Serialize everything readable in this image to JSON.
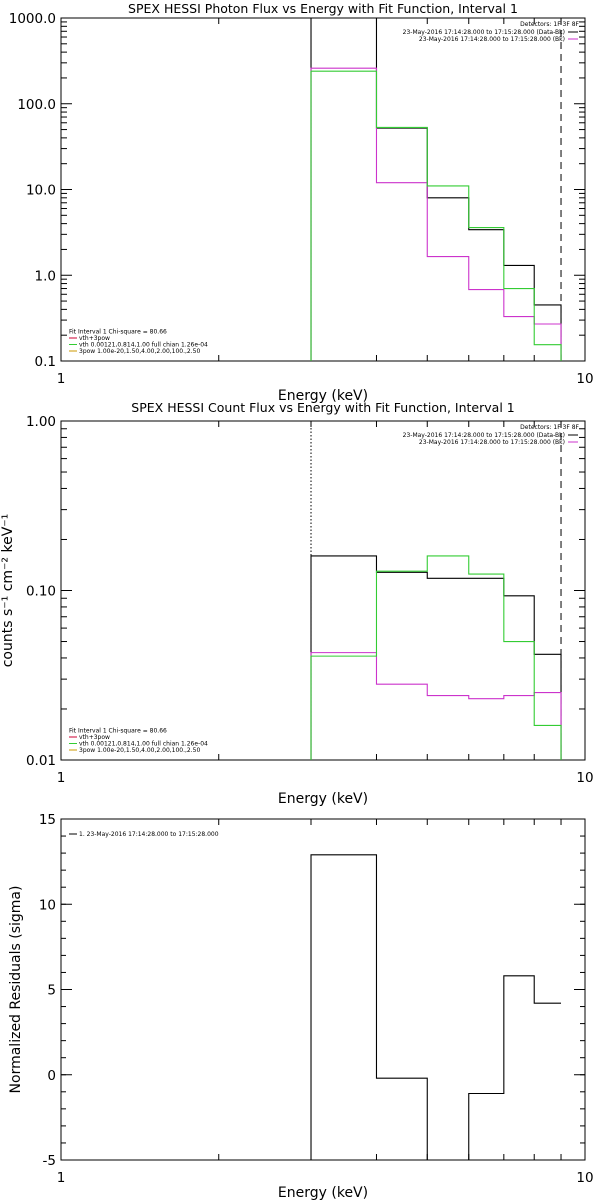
{
  "chart_data": [
    {
      "type": "line",
      "title": "SPEX HESSI Photon Flux vs Energy with Fit Function, Interval 1",
      "xlabel": "Energy (keV)",
      "ylabel": "",
      "xscale": "log",
      "yscale": "log",
      "xlim": [
        1,
        10
      ],
      "ylim": [
        0.1,
        1000
      ],
      "x_ticks": [
        "1",
        "10"
      ],
      "y_ticks": [
        "0.1",
        "1.0",
        "10.0",
        "100.0",
        "1000.0"
      ],
      "grid": false,
      "detectors_label": "Detectors: 1F 3F 8F",
      "legend_right": [
        {
          "text": "23-May-2016 17:14:28.000 to 17:15:28.000 (Data-Bk)",
          "color": "#000000"
        },
        {
          "text": "23-May-2016 17:14:28.000 to 17:15:28.000 (Bk)",
          "color": "#cc33cc"
        }
      ],
      "legend_left": [
        {
          "text": "Fit Interval 1    Chi-square = 80.66",
          "color": ""
        },
        {
          "text": "vth+3pow",
          "color": "#cc0033"
        },
        {
          "text": "vth 0.00121,0.814,1.00  full chian 1.26e-04",
          "color": "#33cc33"
        },
        {
          "text": "3pow 1.00e-20,1.50,4.00,2.00,100.,2.50",
          "color": "#cc9900"
        }
      ],
      "vlines": [
        {
          "x": 3.0,
          "style": "dotted",
          "color": "#33cc33"
        },
        {
          "x": 9.0,
          "style": "dashed",
          "color": "#000000"
        }
      ],
      "bin_edges": [
        3.0,
        4.0,
        5.0,
        6.0,
        7.0,
        8.0,
        9.0
      ],
      "series": [
        {
          "name": "Data-Bk",
          "color": "#000000",
          "values": [
            1000,
            52,
            8.0,
            3.4,
            1.3,
            0.45
          ]
        },
        {
          "name": "Bk",
          "color": "#cc33cc",
          "values": [
            260,
            12,
            1.65,
            0.68,
            0.33,
            0.27
          ]
        },
        {
          "name": "vth+3pow",
          "color": "#33cc33",
          "values": [
            240,
            53,
            11,
            3.6,
            0.7,
            0.155
          ]
        }
      ]
    },
    {
      "type": "line",
      "title": "SPEX HESSI Count Flux vs Energy with Fit Function, Interval 1",
      "xlabel": "Energy (keV)",
      "ylabel": "counts s⁻¹ cm⁻² keV⁻¹",
      "xscale": "log",
      "yscale": "log",
      "xlim": [
        1,
        10
      ],
      "ylim": [
        0.01,
        1.0
      ],
      "x_ticks": [
        "1",
        "10"
      ],
      "y_ticks": [
        "0.01",
        "0.10",
        "1.00"
      ],
      "grid": false,
      "detectors_label": "Detectors: 1F 3F 8F",
      "legend_right": [
        {
          "text": "23-May-2016 17:14:28.000 to 17:15:28.000 (Data-Bk)",
          "color": "#000000"
        },
        {
          "text": "23-May-2016 17:14:28.000 to 17:15:28.000 (Bk)",
          "color": "#cc33cc"
        }
      ],
      "legend_left": [
        {
          "text": "Fit Interval 1    Chi-square = 80.66",
          "color": ""
        },
        {
          "text": "vth+3pow",
          "color": "#cc0033"
        },
        {
          "text": "vth 0.00121,0.814,1.00  full chian 1.26e-04",
          "color": "#33cc33"
        },
        {
          "text": "3pow 1.00e-20,1.50,4.00,2.00,100.,2.50",
          "color": "#cc9900"
        }
      ],
      "vlines": [
        {
          "x": 3.0,
          "style": "dotted",
          "color": "#000000"
        },
        {
          "x": 9.0,
          "style": "dashed",
          "color": "#000000"
        }
      ],
      "bin_edges": [
        3.0,
        4.0,
        5.0,
        6.0,
        7.0,
        8.0,
        9.0
      ],
      "series": [
        {
          "name": "Data-Bk",
          "color": "#000000",
          "values": [
            0.16,
            0.128,
            0.118,
            0.118,
            0.093,
            0.042
          ]
        },
        {
          "name": "Bk",
          "color": "#cc33cc",
          "values": [
            0.043,
            0.028,
            0.024,
            0.023,
            0.024,
            0.025
          ]
        },
        {
          "name": "vth+3pow",
          "color": "#33cc33",
          "values": [
            0.041,
            0.13,
            0.16,
            0.125,
            0.05,
            0.016
          ]
        }
      ]
    },
    {
      "type": "line",
      "title": "",
      "xlabel": "Energy (keV)",
      "ylabel": "Normalized Residuals (sigma)",
      "xscale": "log",
      "yscale": "linear",
      "xlim": [
        1,
        10
      ],
      "ylim": [
        -5,
        15
      ],
      "x_ticks": [
        "1",
        "10"
      ],
      "y_ticks": [
        "-5",
        "0",
        "5",
        "10",
        "15"
      ],
      "grid": false,
      "legend_left": [
        {
          "text": "1. 23-May-2016 17:14:28.000 to 17:15:28.000",
          "color": "#000000"
        }
      ],
      "bin_edges": [
        3.0,
        4.0,
        5.0,
        6.0,
        7.0,
        8.0,
        9.0
      ],
      "series": [
        {
          "name": "",
          "color": "#000000",
          "values": [
            12.9,
            -0.2,
            -5.1,
            -1.1,
            5.8,
            4.2
          ]
        }
      ]
    }
  ]
}
